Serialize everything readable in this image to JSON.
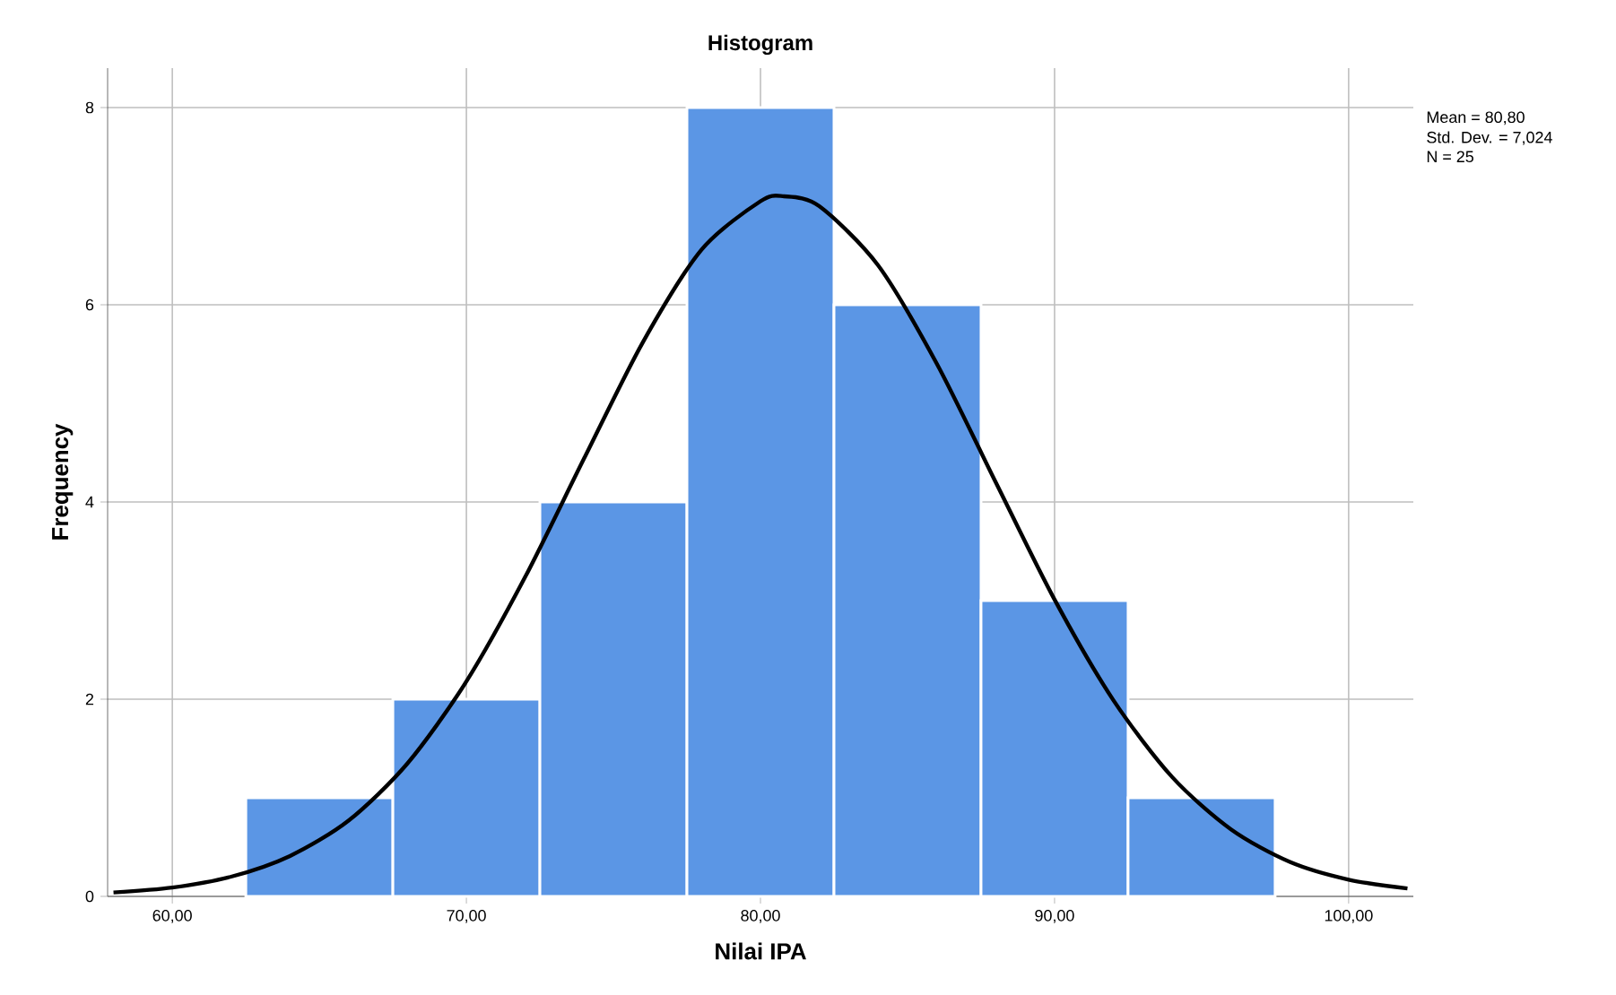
{
  "chart_data": {
    "type": "histogram",
    "title": "Histogram",
    "xlabel": "Nilai IPA",
    "ylabel": "Frequency",
    "bins": [
      62.5,
      67.5,
      72.5,
      77.5,
      82.5,
      87.5,
      92.5,
      97.5
    ],
    "values": [
      1,
      2,
      4,
      8,
      6,
      3,
      1
    ],
    "color": "#5b96e5",
    "series": [
      {
        "type": "line",
        "color": "#000000",
        "x": [
          58,
          60,
          62,
          64,
          66,
          68,
          70,
          72,
          74,
          76,
          78,
          80,
          80.8,
          82,
          84,
          86,
          88,
          90,
          92,
          94,
          96,
          98,
          100,
          102
        ],
        "values": [
          0.04,
          0.09,
          0.2,
          0.41,
          0.77,
          1.35,
          2.18,
          3.24,
          4.44,
          5.62,
          6.56,
          7.05,
          7.1,
          7.0,
          6.4,
          5.4,
          4.2,
          3.01,
          1.99,
          1.21,
          0.68,
          0.35,
          0.17,
          0.08
        ]
      }
    ],
    "xlim": [
      57.8,
      102.2
    ],
    "ylim": [
      0,
      8.4
    ],
    "xticks": [
      {
        "value": 60,
        "label": "60,00"
      },
      {
        "value": 70,
        "label": "70,00"
      },
      {
        "value": 80,
        "label": "80,00"
      },
      {
        "value": 90,
        "label": "90,00"
      },
      {
        "value": 100,
        "label": "100,00"
      }
    ],
    "yticks": [
      0,
      2,
      4,
      6,
      8
    ],
    "grid": true,
    "marker": "none",
    "annotations": [
      "Mean = 80,80",
      "Std. Dev. = 7,024",
      "N = 25"
    ]
  }
}
